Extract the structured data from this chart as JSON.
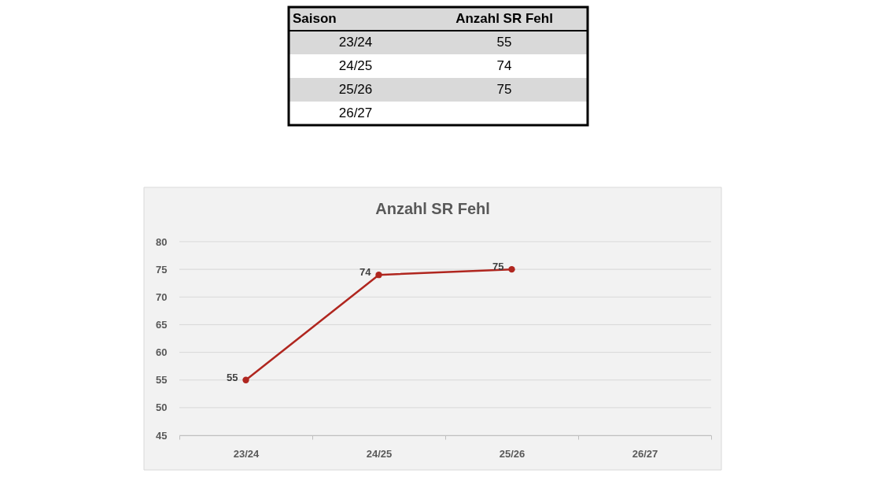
{
  "chart_data": [
    {
      "type": "other",
      "xlabel": "Saison",
      "ylabel": "Anzahl SR Fehl",
      "categories": [
        "23/24",
        "24/25",
        "25/26",
        "26/27"
      ],
      "values": [
        55,
        74,
        75,
        null
      ],
      "data_labels": true
    },
    {
      "type": "line",
      "title": "Anzahl SR Fehl",
      "categories": [
        "23/24",
        "24/25",
        "25/26",
        "26/27"
      ],
      "values": [
        55,
        74,
        75,
        null
      ],
      "color": "#b0261f",
      "ylim": [
        45,
        80
      ],
      "yticks": [
        45,
        50,
        55,
        60,
        65,
        70,
        75,
        80
      ],
      "grid": "y",
      "marker": "circle",
      "data_labels": true
    }
  ]
}
